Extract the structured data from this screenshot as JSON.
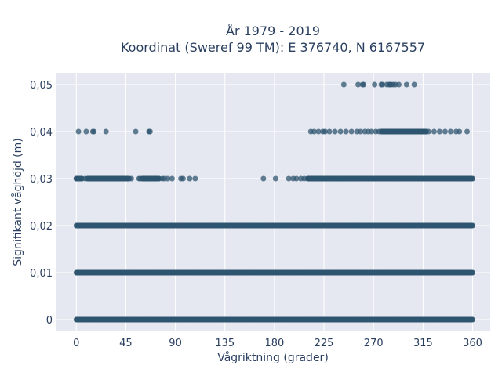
{
  "chart_data": {
    "type": "scatter",
    "title": "År 1979 - 2019",
    "subtitle": "Koordinat (Sweref 99 TM): E 376740, N 6167557",
    "xlabel": "Vågriktning (grader)",
    "ylabel": "Signifikant våghöjd (m)",
    "xlim": [
      -18,
      376
    ],
    "ylim": [
      -0.0025,
      0.0525
    ],
    "x_ticks": [
      0,
      45,
      90,
      135,
      180,
      225,
      270,
      315,
      360
    ],
    "x_tick_labels": [
      "0",
      "45",
      "90",
      "135",
      "180",
      "225",
      "270",
      "315",
      "360"
    ],
    "y_ticks": [
      0,
      0.01,
      0.02,
      0.03,
      0.04,
      0.05
    ],
    "y_tick_labels": [
      "0",
      "0,01",
      "0,02",
      "0,03",
      "0,04",
      "0,05"
    ],
    "grid": true,
    "marker_color": "#2f5670",
    "background_color": "#e5e8f0",
    "series": [
      {
        "levels": [
          {
            "y": 0,
            "ranges": [
              [
                0,
                360
              ]
            ]
          },
          {
            "y": 0.01,
            "ranges": [
              [
                0,
                360
              ]
            ]
          },
          {
            "y": 0.02,
            "ranges": [
              [
                0,
                360
              ]
            ]
          },
          {
            "y": 0.03,
            "ranges": [
              [
                0,
                5
              ],
              [
                10,
                48
              ],
              [
                60,
                75
              ],
              [
                210,
                360
              ]
            ],
            "points": [
              0,
              5,
              8,
              12,
              18,
              25,
              30,
              35,
              40,
              45,
              50,
              57,
              58,
              60,
              62,
              65,
              68,
              70,
              72,
              75,
              78,
              80,
              83,
              87,
              95,
              97,
              103,
              108,
              170,
              181,
              193,
              197,
              200,
              204,
              207,
              216,
              222,
              226,
              233,
              237,
              241,
              248
            ]
          },
          {
            "y": 0.04,
            "ranges": [
              [
                277,
                318
              ]
            ],
            "points": [
              2,
              9,
              15,
              16,
              27,
              54,
              66,
              67,
              213,
              216,
              220,
              224,
              226,
              230,
              235,
              240,
              245,
              250,
              255,
              258,
              262,
              265,
              268,
              272,
              275,
              320,
              325,
              330,
              335,
              340,
              345,
              348,
              355
            ]
          },
          {
            "y": 0.05,
            "ranges": [],
            "points": [
              243,
              256,
              260,
              261,
              271,
              277,
              278,
              282,
              284,
              285,
              286,
              288,
              290,
              293,
              300,
              307
            ]
          }
        ]
      }
    ]
  }
}
